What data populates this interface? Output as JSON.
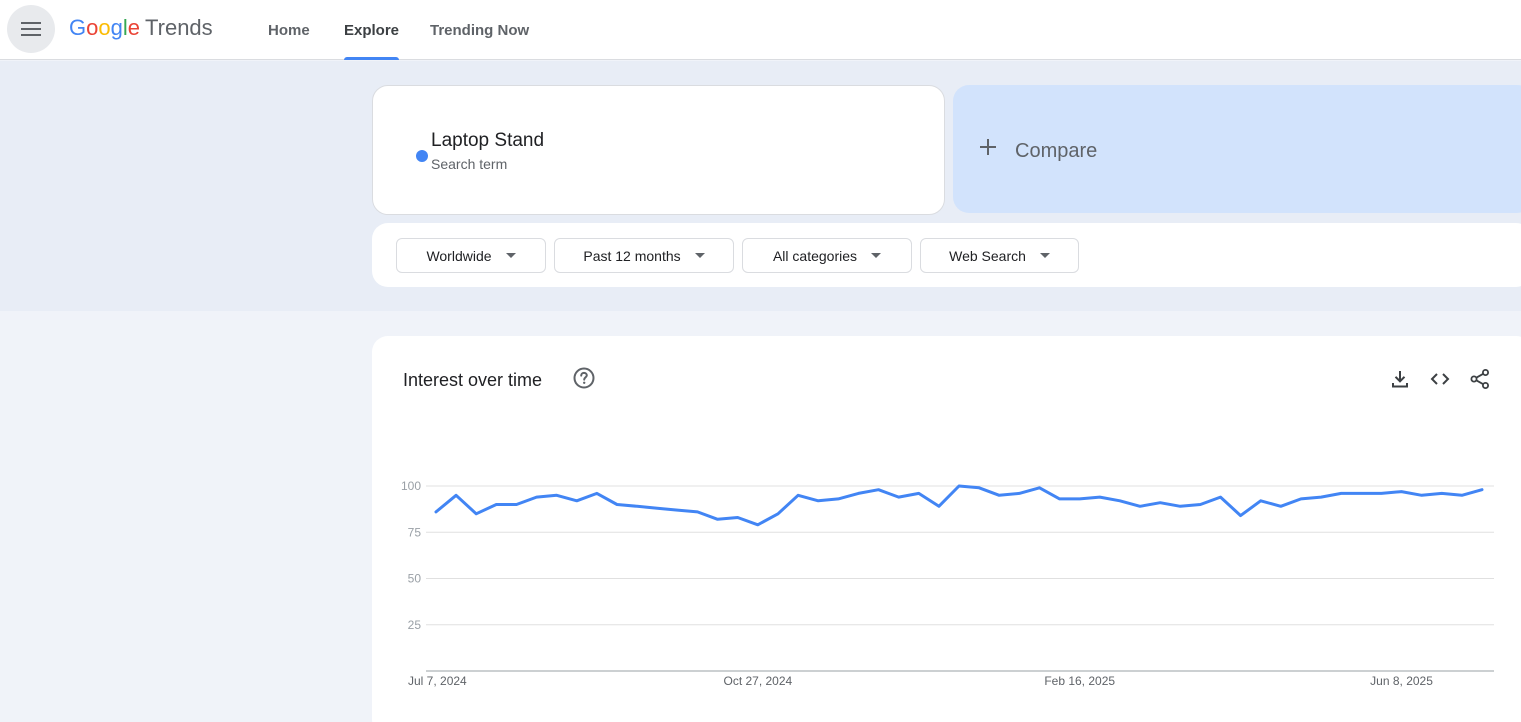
{
  "header": {
    "logo_word": "Google",
    "logo_suffix": "Trends",
    "nav": [
      {
        "label": "Home",
        "active": false
      },
      {
        "label": "Explore",
        "active": true
      },
      {
        "label": "Trending Now",
        "active": false
      }
    ]
  },
  "search_term": {
    "name": "Laptop Stand",
    "subtitle": "Search term",
    "color": "#4285f4"
  },
  "compare": {
    "label": "Compare"
  },
  "filters": [
    {
      "label": "Worldwide"
    },
    {
      "label": "Past 12 months"
    },
    {
      "label": "All categories"
    },
    {
      "label": "Web Search"
    }
  ],
  "chart_card": {
    "title": "Interest over time"
  },
  "colors": {
    "accent": "#4285f4",
    "compare_bg": "#d2e3fc",
    "band_bg": "#e8edf6"
  },
  "chart_data": {
    "type": "line",
    "xlabel": "",
    "ylabel": "",
    "ylim": [
      0,
      100
    ],
    "yticks": [
      25,
      50,
      75,
      100
    ],
    "x_tick_labels": [
      "Jul 7, 2024",
      "Oct 27, 2024",
      "Feb 16, 2025",
      "Jun 8, 2025"
    ],
    "x_tick_indices": [
      0,
      16,
      32,
      48
    ],
    "grid": true,
    "series": [
      {
        "color": "#4285f4",
        "values": [
          86,
          95,
          85,
          90,
          90,
          94,
          95,
          92,
          96,
          90,
          89,
          88,
          87,
          86,
          82,
          83,
          79,
          85,
          95,
          92,
          93,
          96,
          98,
          94,
          96,
          89,
          100,
          99,
          95,
          96,
          99,
          93,
          93,
          94,
          92,
          89,
          91,
          89,
          90,
          94,
          84,
          92,
          89,
          93,
          94,
          96,
          96,
          96,
          97,
          95,
          96,
          95,
          98
        ]
      }
    ]
  }
}
